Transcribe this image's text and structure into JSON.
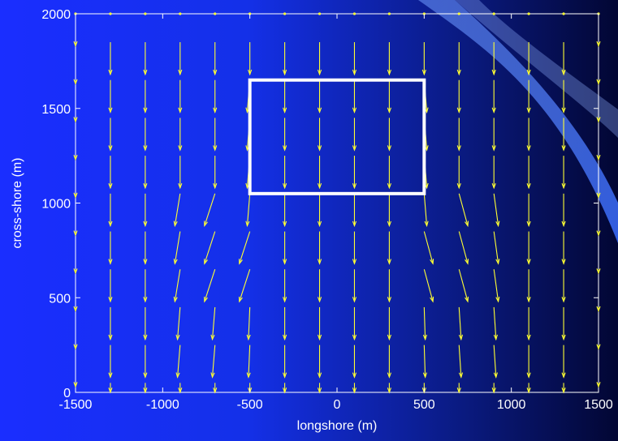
{
  "chart_data": {
    "type": "quiver",
    "title": "",
    "xlabel": "longshore (m)",
    "ylabel": "cross-shore (m)",
    "xlim": [
      -1500,
      1500
    ],
    "ylim": [
      0,
      2000
    ],
    "xticks": [
      -1500,
      -1000,
      -500,
      0,
      500,
      1000,
      1500
    ],
    "yticks": [
      0,
      500,
      1000,
      1500,
      2000
    ],
    "xtick_labels": [
      "-1500",
      "-1000",
      "-500",
      "0",
      "500",
      "1000",
      "1500"
    ],
    "ytick_labels": [
      "0",
      "500",
      "1000",
      "1500",
      "2000"
    ],
    "grid": false,
    "arrow_color": "#ffff33",
    "grid_x": [
      -1500,
      -1300,
      -1100,
      -900,
      -700,
      -500,
      -300,
      -100,
      100,
      300,
      500,
      700,
      900,
      1100,
      1300,
      1500
    ],
    "grid_y": [
      50,
      250,
      450,
      650,
      850,
      1050,
      1250,
      1450,
      1650,
      1850,
      2000
    ],
    "vectors_note_units": "u,v components in meters of displayed arrow length",
    "region_box": {
      "x": [
        -500,
        500
      ],
      "y": [
        1050,
        1650
      ],
      "color": "#ffffff"
    }
  },
  "colors": {
    "axes": "#ffffff",
    "arrows": "#ffff33",
    "box": "#ffffff",
    "background_left": "#1a2eff",
    "background_right": "#020633"
  }
}
